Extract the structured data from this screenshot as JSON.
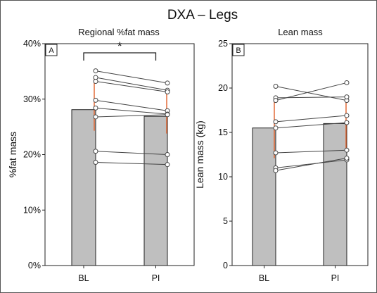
{
  "title": "DXA – Legs",
  "chart_data": [
    {
      "type": "bar",
      "panel_label": "A",
      "title": "Regional %fat mass",
      "ylabel": "%fat mass",
      "categories": [
        "BL",
        "PI"
      ],
      "values": [
        28.1,
        26.9
      ],
      "ylim": [
        0,
        40
      ],
      "yticks": [
        0,
        10,
        20,
        30,
        40
      ],
      "ytick_labels": [
        "0%",
        "10%",
        "20%",
        "30%",
        "40%"
      ],
      "error_bars": [
        [
          24.3,
          34.0
        ],
        [
          23.8,
          31.6
        ]
      ],
      "paired_points": [
        [
          35.1,
          32.9
        ],
        [
          33.9,
          31.6
        ],
        [
          33.2,
          31.3
        ],
        [
          29.8,
          27.9
        ],
        [
          28.4,
          27.3
        ],
        [
          26.8,
          27.2
        ],
        [
          20.6,
          20.0
        ],
        [
          18.6,
          18.2
        ]
      ],
      "significance": "*",
      "bar_color": "#bfbfbf",
      "error_color": "#e0602a"
    },
    {
      "type": "bar",
      "panel_label": "B",
      "title": "Lean mass",
      "ylabel": "Lean mass (kg)",
      "categories": [
        "BL",
        "PI"
      ],
      "values": [
        15.5,
        16.0
      ],
      "ylim": [
        0,
        25
      ],
      "yticks": [
        0,
        5,
        10,
        15,
        20,
        25
      ],
      "ytick_labels": [
        "0",
        "5",
        "10",
        "15",
        "20",
        "25"
      ],
      "error_bars": [
        [
          12.1,
          18.9
        ],
        [
          12.9,
          19.1
        ]
      ],
      "paired_points": [
        [
          20.2,
          18.6
        ],
        [
          18.9,
          19.0
        ],
        [
          18.6,
          20.6
        ],
        [
          16.2,
          16.9
        ],
        [
          15.5,
          16.1
        ],
        [
          12.7,
          13.0
        ],
        [
          11.0,
          11.9
        ],
        [
          10.7,
          12.1
        ]
      ],
      "significance": "",
      "bar_color": "#bfbfbf",
      "error_color": "#e0602a"
    }
  ]
}
